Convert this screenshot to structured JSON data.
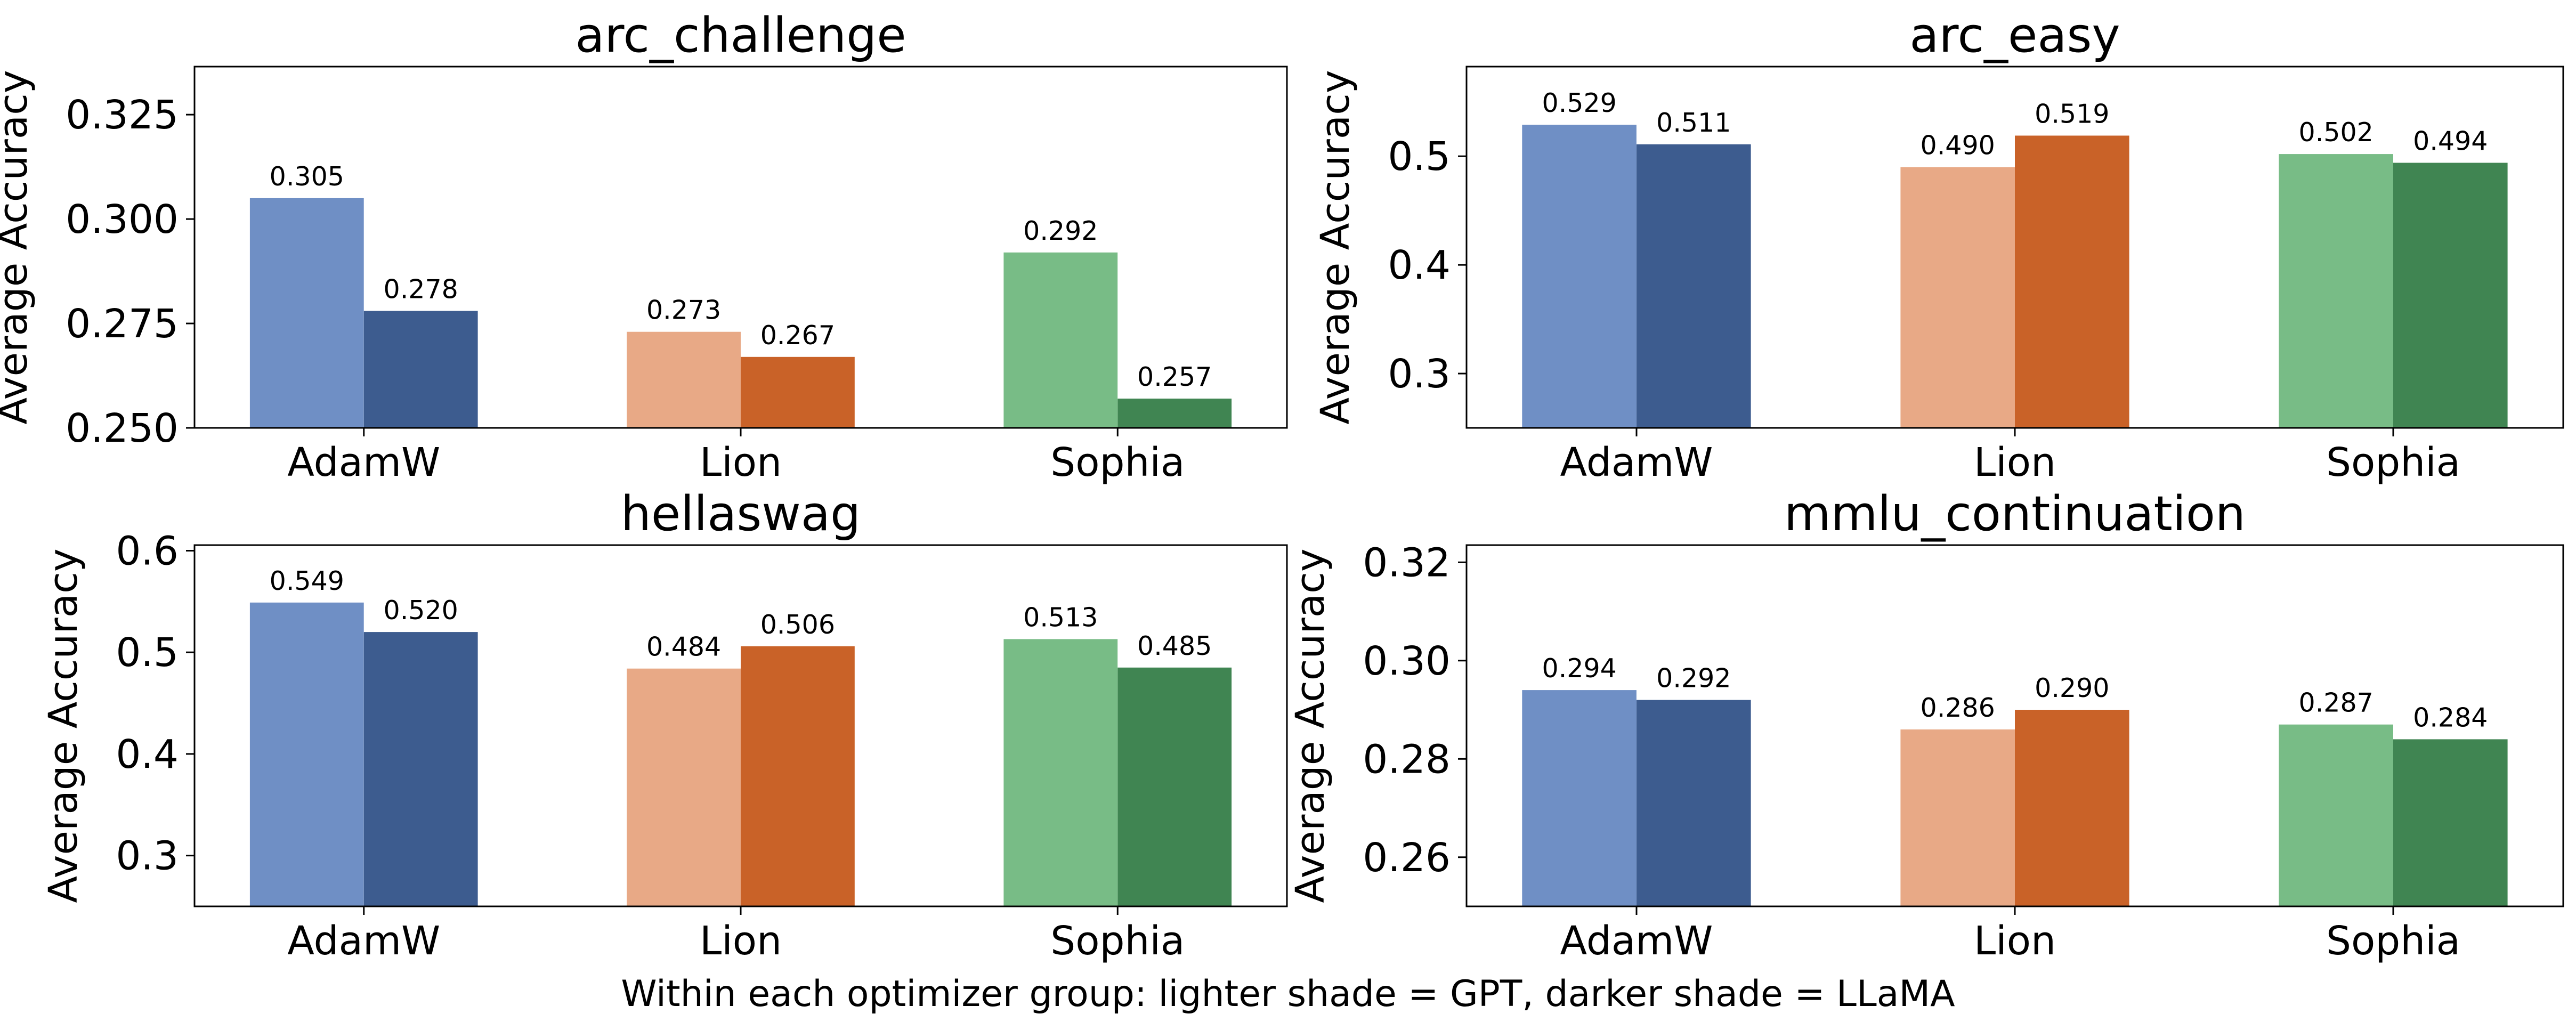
{
  "chart_data": [
    {
      "type": "bar",
      "title": "arc_challenge",
      "xlabel": "",
      "ylabel": "Average Accuracy",
      "categories": [
        "AdamW",
        "Lion",
        "Sophia"
      ],
      "series": [
        {
          "name": "GPT",
          "values": [
            0.305,
            0.273,
            0.292
          ]
        },
        {
          "name": "LLaMA",
          "values": [
            0.278,
            0.267,
            0.257
          ]
        }
      ],
      "data_labels": [
        [
          "0.305",
          "0.278"
        ],
        [
          "0.273",
          "0.267"
        ],
        [
          "0.292",
          "0.257"
        ]
      ],
      "ylim": [
        0.25,
        0.3365
      ],
      "yticks": [
        0.25,
        0.275,
        0.3,
        0.325
      ],
      "ytick_labels": [
        "0.250",
        "0.275",
        "0.300",
        "0.325"
      ],
      "grid": false
    },
    {
      "type": "bar",
      "title": "arc_easy",
      "xlabel": "",
      "ylabel": "Average Accuracy",
      "categories": [
        "AdamW",
        "Lion",
        "Sophia"
      ],
      "series": [
        {
          "name": "GPT",
          "values": [
            0.529,
            0.49,
            0.502
          ]
        },
        {
          "name": "LLaMA",
          "values": [
            0.511,
            0.519,
            0.494
          ]
        }
      ],
      "data_labels": [
        [
          "0.529",
          "0.511"
        ],
        [
          "0.490",
          "0.519"
        ],
        [
          "0.502",
          "0.494"
        ]
      ],
      "ylim": [
        0.25,
        0.5825
      ],
      "yticks": [
        0.3,
        0.4,
        0.5
      ],
      "ytick_labels": [
        "0.3",
        "0.4",
        "0.5"
      ],
      "grid": false
    },
    {
      "type": "bar",
      "title": "hellaswag",
      "xlabel": "",
      "ylabel": "Average Accuracy",
      "categories": [
        "AdamW",
        "Lion",
        "Sophia"
      ],
      "series": [
        {
          "name": "GPT",
          "values": [
            0.549,
            0.484,
            0.513
          ]
        },
        {
          "name": "LLaMA",
          "values": [
            0.52,
            0.506,
            0.485
          ]
        }
      ],
      "data_labels": [
        [
          "0.549",
          "0.520"
        ],
        [
          "0.484",
          "0.506"
        ],
        [
          "0.513",
          "0.485"
        ]
      ],
      "ylim": [
        0.25,
        0.6055
      ],
      "yticks": [
        0.3,
        0.4,
        0.5,
        0.6
      ],
      "ytick_labels": [
        "0.3",
        "0.4",
        "0.5",
        "0.6"
      ],
      "grid": false
    },
    {
      "type": "bar",
      "title": "mmlu_continuation",
      "xlabel": "",
      "ylabel": "Average Accuracy",
      "categories": [
        "AdamW",
        "Lion",
        "Sophia"
      ],
      "series": [
        {
          "name": "GPT",
          "values": [
            0.294,
            0.286,
            0.287
          ]
        },
        {
          "name": "LLaMA",
          "values": [
            0.292,
            0.29,
            0.284
          ]
        }
      ],
      "data_labels": [
        [
          "0.294",
          "0.292"
        ],
        [
          "0.286",
          "0.290"
        ],
        [
          "0.287",
          "0.284"
        ]
      ],
      "ylim": [
        0.25,
        0.3235
      ],
      "yticks": [
        0.26,
        0.28,
        0.3,
        0.32
      ],
      "ytick_labels": [
        "0.26",
        "0.28",
        "0.30",
        "0.32"
      ],
      "grid": false
    }
  ],
  "colors": {
    "AdamW": {
      "GPT": "#6f8fc5",
      "LLaMA": "#3d5c8f"
    },
    "Lion": {
      "GPT": "#e8a986",
      "LLaMA": "#c96228"
    },
    "Sophia": {
      "GPT": "#78bc86",
      "LLaMA": "#408552"
    }
  },
  "caption": "Within each optimizer group: lighter shade = GPT, darker shade = LLaMA"
}
